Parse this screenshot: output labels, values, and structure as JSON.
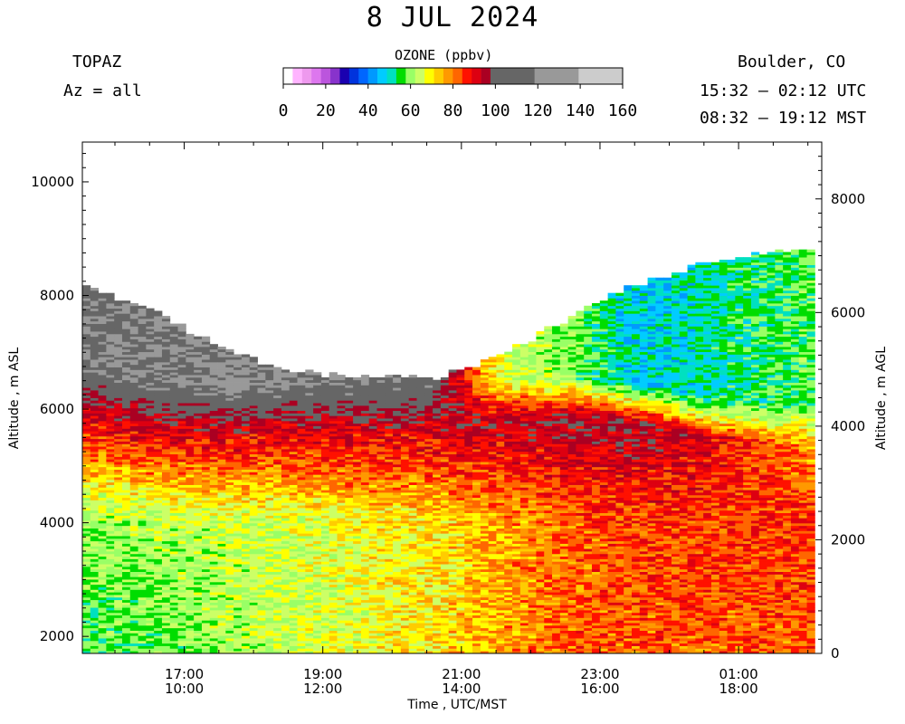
{
  "header": {
    "title": "8 JUL 2024",
    "instrument": "TOPAZ",
    "azimuth": "Az = all",
    "location": "Boulder, CO",
    "time_utc": "15:32 – 02:12 UTC",
    "time_mst": "08:32 – 19:12 MST"
  },
  "colorbar": {
    "title": "OZONE (ppbv)",
    "labels": [
      "0",
      "20",
      "40",
      "60",
      "80",
      "100",
      "120",
      "140",
      "160"
    ],
    "colors": [
      "#ffffff",
      "#ffb4ff",
      "#ee99ee",
      "#dd77ee",
      "#bb55dd",
      "#8833cc",
      "#1a00b0",
      "#0033dd",
      "#0066ff",
      "#0099ff",
      "#00ccff",
      "#00e0c0",
      "#00dd00",
      "#99ff66",
      "#ccff66",
      "#ffff00",
      "#ffcc00",
      "#ff9900",
      "#ff6600",
      "#ff1100",
      "#dd0011",
      "#aa0022",
      "#666666",
      "#999999",
      "#cccccc"
    ]
  },
  "chart_data": {
    "type": "heatmap",
    "title": "8 JUL 2024",
    "xlabel": "Time , UTC/MST",
    "ylabel_left": "Altitude , m ASL",
    "ylabel_right": "Altitude , m AGL",
    "x_range_utc_hours": [
      15.53,
      26.2
    ],
    "y_range_asl_m": [
      1700,
      10700
    ],
    "y_range_agl_m": [
      0,
      9000
    ],
    "value_unit": "ppbv",
    "value_range": [
      0,
      160
    ],
    "x_ticks_utc": [
      "17:00",
      "19:00",
      "21:00",
      "23:00",
      "01:00"
    ],
    "x_ticks_mst": [
      "10:00",
      "12:00",
      "14:00",
      "16:00",
      "18:00"
    ],
    "y_ticks_left": [
      "2000",
      "4000",
      "6000",
      "8000",
      "10000"
    ],
    "y_ticks_right": [
      "0",
      "2000",
      "4000",
      "6000",
      "8000"
    ],
    "approx_profile": {
      "time_utc_hours": [
        15.53,
        16.5,
        17.5,
        18.5,
        19.5,
        20.5,
        21.5,
        22.5,
        23.5,
        24.5,
        25.5,
        26.1
      ],
      "top_of_data_m_asl": [
        8150,
        7700,
        7050,
        6650,
        6550,
        6500,
        6900,
        7600,
        8200,
        8550,
        8750,
        8850
      ],
      "ozone_max_layer_m_asl": [
        6000,
        5800,
        5700,
        5750,
        5700,
        5700,
        5800,
        5850,
        5750,
        5500,
        5400,
        5300
      ],
      "ozone_ppbv_near_surface": [
        55,
        58,
        62,
        66,
        70,
        74,
        80,
        85,
        86,
        86,
        86,
        86
      ],
      "ozone_ppbv_at_4000m": [
        62,
        64,
        66,
        68,
        72,
        74,
        80,
        85,
        88,
        88,
        90,
        90
      ],
      "ozone_ppbv_max_layer": [
        98,
        100,
        100,
        99,
        98,
        98,
        100,
        102,
        102,
        95,
        85,
        80
      ],
      "ozone_ppbv_above_layer_top": [
        118,
        120,
        122,
        120,
        118,
        115,
        70,
        60,
        45,
        50,
        55,
        58
      ]
    }
  }
}
